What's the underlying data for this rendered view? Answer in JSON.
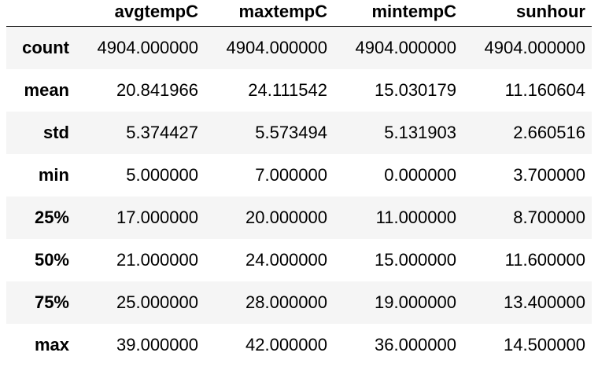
{
  "table": {
    "columns": [
      "",
      "avgtempC",
      "maxtempC",
      "mintempC",
      "sunhour"
    ],
    "rows": [
      {
        "label": "count",
        "values": [
          "4904.000000",
          "4904.000000",
          "4904.000000",
          "4904.000000"
        ]
      },
      {
        "label": "mean",
        "values": [
          "20.841966",
          "24.111542",
          "15.030179",
          "11.160604"
        ]
      },
      {
        "label": "std",
        "values": [
          "5.374427",
          "5.573494",
          "5.131903",
          "2.660516"
        ]
      },
      {
        "label": "min",
        "values": [
          "5.000000",
          "7.000000",
          "0.000000",
          "3.700000"
        ]
      },
      {
        "label": "25%",
        "values": [
          "17.000000",
          "20.000000",
          "11.000000",
          "8.700000"
        ]
      },
      {
        "label": "50%",
        "values": [
          "21.000000",
          "24.000000",
          "15.000000",
          "11.600000"
        ]
      },
      {
        "label": "75%",
        "values": [
          "25.000000",
          "28.000000",
          "19.000000",
          "13.400000"
        ]
      },
      {
        "label": "max",
        "values": [
          "39.000000",
          "42.000000",
          "36.000000",
          "14.500000"
        ]
      }
    ]
  }
}
